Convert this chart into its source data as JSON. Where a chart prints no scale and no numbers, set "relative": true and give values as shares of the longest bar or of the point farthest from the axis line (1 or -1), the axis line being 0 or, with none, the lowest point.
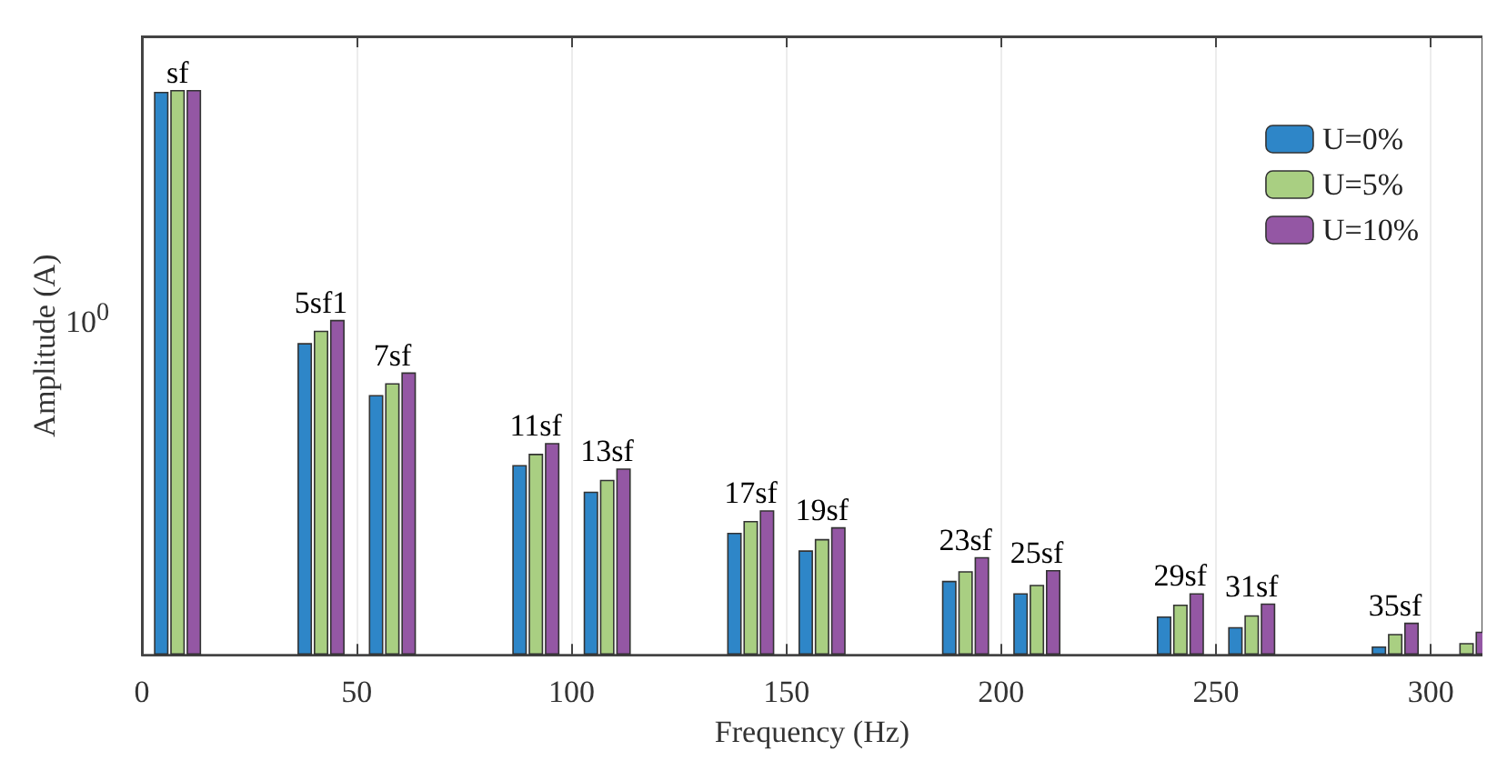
{
  "chart_data": {
    "type": "bar",
    "relative": true,
    "xlabel": "Frequency (Hz)",
    "ylabel": "Amplitude (A)",
    "x": [
      8.3,
      41.7,
      58.3,
      91.7,
      108.3,
      141.7,
      158.3,
      191.7,
      208.3,
      241.7,
      258.3,
      291.7,
      308.3
    ],
    "xlim": [
      0,
      312
    ],
    "xticks": [
      0,
      50,
      100,
      150,
      200,
      250,
      300
    ],
    "series": [
      {
        "name": "U=0%",
        "color": "#2e86c8",
        "values": [
          0.997,
          0.552,
          0.46,
          0.336,
          0.289,
          0.216,
          0.185,
          0.131,
          0.109,
          0.068,
          0.049,
          0.015,
          null
        ]
      },
      {
        "name": "U=5%",
        "color": "#a9cf82",
        "values": [
          1,
          0.574,
          0.481,
          0.356,
          0.31,
          0.237,
          0.205,
          0.148,
          0.124,
          0.089,
          0.07,
          0.037,
          0.021
        ]
      },
      {
        "name": "U=10%",
        "color": "#9457a4",
        "values": [
          1,
          0.593,
          0.5,
          0.375,
          0.33,
          0.256,
          0.226,
          0.173,
          0.15,
          0.109,
          0.091,
          0.057,
          0.041
        ]
      }
    ],
    "annotations": [
      "10$^{0}$",
      "sf",
      "5sf1",
      "7sf",
      "11sf",
      "13sf",
      "17sf",
      "19sf",
      "23sf",
      "25sf",
      "29sf",
      "31sf",
      "35sf"
    ],
    "grid": "x",
    "legend": "top right"
  }
}
